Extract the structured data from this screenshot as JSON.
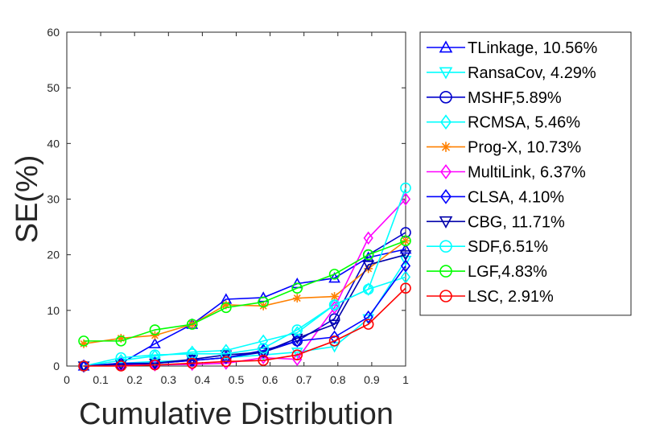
{
  "chart_data": {
    "type": "line",
    "xlabel": "Cumulative Distribution",
    "ylabel": "SE(%)",
    "xlim": [
      0,
      1
    ],
    "ylim": [
      0,
      60
    ],
    "xticks": [
      0,
      0.1,
      0.2,
      0.3,
      0.4,
      0.5,
      0.6,
      0.7,
      0.8,
      0.9,
      1
    ],
    "yticks": [
      0,
      10,
      20,
      30,
      40,
      50,
      60
    ],
    "legend_position": "outside-right",
    "x": [
      0.05,
      0.16,
      0.26,
      0.37,
      0.47,
      0.58,
      0.68,
      0.79,
      0.89,
      1.0
    ],
    "series": [
      {
        "name": "TLinkage, 10.56%",
        "color": "#0000ff",
        "marker": "triangle-up",
        "values": [
          0,
          0.5,
          4,
          7.5,
          12,
          12.3,
          14.8,
          15.8,
          19.5,
          21
        ]
      },
      {
        "name": "RansaCov, 4.29%",
        "color": "#00ffff",
        "marker": "triangle-down",
        "values": [
          0,
          0.5,
          0.8,
          1.0,
          1.5,
          2.0,
          2.5,
          3.5,
          8.5,
          19
        ]
      },
      {
        "name": "MSHF,5.89%",
        "color": "#0000cc",
        "marker": "circle",
        "values": [
          0,
          0.2,
          0.5,
          1.0,
          1.5,
          2.5,
          4.5,
          8.5,
          20,
          24
        ]
      },
      {
        "name": "RCMSA, 5.46%",
        "color": "#00ffff",
        "marker": "diamond",
        "values": [
          0,
          1.0,
          1.8,
          2.5,
          2.8,
          4.5,
          6.0,
          11.0,
          13.8,
          16
        ]
      },
      {
        "name": "Prog-X, 10.73%",
        "color": "#ff8000",
        "marker": "asterisk",
        "values": [
          4,
          5,
          5.5,
          7.5,
          11,
          10.8,
          12.2,
          12.5,
          17.5,
          22.5
        ]
      },
      {
        "name": "MultiLink, 6.37%",
        "color": "#ff00ff",
        "marker": "diamond",
        "values": [
          0,
          0.2,
          0.2,
          0.3,
          0.5,
          1.5,
          1.2,
          10.5,
          23,
          30
        ]
      },
      {
        "name": "CLSA, 4.10%",
        "color": "#0000ff",
        "marker": "diamond",
        "values": [
          0,
          0.5,
          0.5,
          1.0,
          1.5,
          2.8,
          4.5,
          5.2,
          8.8,
          18
        ]
      },
      {
        "name": "CBG, 11.71%",
        "color": "#0000aa",
        "marker": "triangle-down",
        "values": [
          0,
          0.3,
          0.5,
          1.2,
          2.0,
          2.5,
          5.0,
          7.5,
          18.2,
          20
        ]
      },
      {
        "name": "SDF,6.51%",
        "color": "#00ffff",
        "marker": "circle",
        "values": [
          0,
          1.5,
          2.0,
          2.2,
          2.2,
          3.2,
          6.5,
          11.0,
          13.8,
          32
        ]
      },
      {
        "name": "LGF,4.83%",
        "color": "#00ff00",
        "marker": "circle",
        "values": [
          4.5,
          4.5,
          6.5,
          7.5,
          10.5,
          11.5,
          14.0,
          16.5,
          20,
          22.5
        ]
      },
      {
        "name": "LSC, 2.91%",
        "color": "#ff0000",
        "marker": "circle",
        "values": [
          0,
          0,
          0.2,
          0.5,
          0.8,
          1.0,
          2.0,
          4.5,
          7.5,
          14
        ]
      }
    ]
  }
}
